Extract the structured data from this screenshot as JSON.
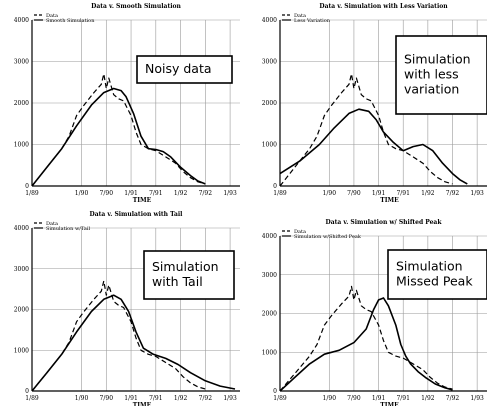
{
  "chart_data": [
    {
      "type": "line",
      "title": "Data v. Smooth Simulation",
      "xlabel": "TIME",
      "ylabel": "",
      "ylim": [
        0,
        4000
      ],
      "yticks": [
        "0",
        "1000",
        "2000",
        "3000",
        "4000"
      ],
      "xlim": [
        1989.0,
        1993.2
      ],
      "xticks": [
        "1/89",
        "1/90",
        "7/90",
        "1/91",
        "7/91",
        "1/92",
        "7/92",
        "1/93"
      ],
      "grid": true,
      "legend_position": "top-left",
      "callout": "Noisy data",
      "series": [
        {
          "name": "Data",
          "style": "dashed",
          "x": [
            1989.0,
            1989.4,
            1989.6,
            1989.75,
            1989.9,
            1990.05,
            1990.25,
            1990.4,
            1990.45,
            1990.5,
            1990.55,
            1990.65,
            1990.75,
            1990.85,
            1991.0,
            1991.1,
            1991.2,
            1991.35,
            1991.5,
            1991.7,
            1991.9,
            1992.05,
            1992.2,
            1992.35,
            1992.5
          ],
          "y": [
            0,
            600,
            900,
            1200,
            1700,
            1950,
            2250,
            2450,
            2700,
            2350,
            2600,
            2200,
            2100,
            2050,
            1700,
            1300,
            1000,
            900,
            850,
            700,
            550,
            350,
            200,
            100,
            50
          ]
        },
        {
          "name": "Smooth Simulation",
          "style": "solid",
          "x": [
            1989.0,
            1989.3,
            1989.6,
            1989.9,
            1990.2,
            1990.45,
            1990.65,
            1990.8,
            1990.9,
            1991.05,
            1991.2,
            1991.35,
            1991.5,
            1991.65,
            1991.8,
            1992.0,
            1992.2,
            1992.35,
            1992.5
          ],
          "y": [
            0,
            450,
            900,
            1450,
            1950,
            2250,
            2350,
            2300,
            2150,
            1750,
            1200,
            900,
            880,
            830,
            700,
            450,
            250,
            120,
            50
          ]
        }
      ]
    },
    {
      "type": "line",
      "title": "Data v. Simulation with Less Variation",
      "xlabel": "TIME",
      "ylabel": "",
      "ylim": [
        0,
        4000
      ],
      "yticks": [
        "0",
        "1000",
        "2000",
        "3000",
        "4000"
      ],
      "xlim": [
        1989.0,
        1993.2
      ],
      "xticks": [
        "1/89",
        "1/90",
        "7/90",
        "1/91",
        "7/91",
        "1/92",
        "7/92",
        "1/93"
      ],
      "grid": true,
      "legend_position": "top-left",
      "callout": "Simulation with less variation",
      "series": [
        {
          "name": "Data",
          "style": "dashed",
          "x": [
            1989.0,
            1989.4,
            1989.6,
            1989.75,
            1989.9,
            1990.05,
            1990.25,
            1990.4,
            1990.45,
            1990.5,
            1990.55,
            1990.65,
            1990.75,
            1990.85,
            1991.0,
            1991.1,
            1991.2,
            1991.35,
            1991.5,
            1991.7,
            1991.9,
            1992.05,
            1992.2,
            1992.35,
            1992.5
          ],
          "y": [
            0,
            600,
            900,
            1200,
            1700,
            1950,
            2250,
            2450,
            2700,
            2350,
            2600,
            2200,
            2100,
            2050,
            1700,
            1300,
            1000,
            900,
            850,
            700,
            550,
            350,
            200,
            100,
            50
          ]
        },
        {
          "name": "Less Variation",
          "style": "solid",
          "x": [
            1989.0,
            1989.4,
            1989.8,
            1990.1,
            1990.4,
            1990.6,
            1990.8,
            1990.95,
            1991.1,
            1991.3,
            1991.5,
            1991.7,
            1991.9,
            1992.1,
            1992.3,
            1992.5,
            1992.65,
            1992.8
          ],
          "y": [
            300,
            600,
            1000,
            1400,
            1750,
            1850,
            1800,
            1600,
            1300,
            1050,
            850,
            950,
            1000,
            850,
            550,
            300,
            150,
            50
          ]
        }
      ]
    },
    {
      "type": "line",
      "title": "Data v. Simulation with Tail",
      "xlabel": "TIME",
      "ylabel": "",
      "ylim": [
        0,
        4000
      ],
      "yticks": [
        "0",
        "1000",
        "2000",
        "3000",
        "4000"
      ],
      "xlim": [
        1989.0,
        1993.2
      ],
      "xticks": [
        "1/89",
        "1/90",
        "7/90",
        "1/91",
        "7/91",
        "1/92",
        "7/92",
        "1/93"
      ],
      "grid": true,
      "legend_position": "top-left",
      "callout": "Simulation with Tail",
      "series": [
        {
          "name": "Data",
          "style": "dashed",
          "x": [
            1989.0,
            1989.4,
            1989.6,
            1989.75,
            1989.9,
            1990.05,
            1990.25,
            1990.4,
            1990.45,
            1990.5,
            1990.55,
            1990.65,
            1990.75,
            1990.85,
            1991.0,
            1991.1,
            1991.2,
            1991.35,
            1991.5,
            1991.7,
            1991.9,
            1992.05,
            1992.2,
            1992.35,
            1992.5
          ],
          "y": [
            0,
            600,
            900,
            1200,
            1700,
            1950,
            2250,
            2450,
            2700,
            2350,
            2600,
            2200,
            2100,
            2050,
            1700,
            1300,
            1000,
            900,
            850,
            700,
            550,
            350,
            200,
            100,
            50
          ]
        },
        {
          "name": "Simulation w/Tail",
          "style": "solid",
          "x": [
            1989.0,
            1989.3,
            1989.6,
            1989.9,
            1990.2,
            1990.45,
            1990.65,
            1990.8,
            1990.95,
            1991.1,
            1991.25,
            1991.45,
            1991.7,
            1991.95,
            1992.2,
            1992.5,
            1992.8,
            1993.1
          ],
          "y": [
            0,
            450,
            900,
            1450,
            1950,
            2250,
            2350,
            2250,
            1950,
            1450,
            1050,
            900,
            800,
            650,
            450,
            250,
            120,
            50
          ]
        }
      ]
    },
    {
      "type": "line",
      "title": "Data v. Simulation w/ Shifted Peak",
      "xlabel": "TIME",
      "ylabel": "",
      "ylim": [
        0,
        4000
      ],
      "yticks": [
        "0",
        "1000",
        "2000",
        "3000",
        "4000"
      ],
      "xlim": [
        1989.0,
        1993.2
      ],
      "xticks": [
        "1/89",
        "1/90",
        "7/90",
        "1/91",
        "7/91",
        "1/92",
        "7/92",
        "1/93"
      ],
      "grid": true,
      "legend_position": "top-left",
      "callout": "Simulation Missed Peak",
      "series": [
        {
          "name": "Data",
          "style": "dashed",
          "x": [
            1989.0,
            1989.4,
            1989.6,
            1989.75,
            1989.9,
            1990.05,
            1990.25,
            1990.4,
            1990.45,
            1990.5,
            1990.55,
            1990.65,
            1990.75,
            1990.85,
            1991.0,
            1991.1,
            1991.2,
            1991.35,
            1991.5,
            1991.7,
            1991.9,
            1992.05,
            1992.2,
            1992.35,
            1992.5
          ],
          "y": [
            0,
            600,
            900,
            1200,
            1700,
            1950,
            2250,
            2450,
            2700,
            2350,
            2600,
            2200,
            2100,
            2050,
            1700,
            1300,
            1000,
            900,
            850,
            700,
            550,
            350,
            200,
            100,
            50
          ]
        },
        {
          "name": "Simulation w/Shifted Peak",
          "style": "solid",
          "x": [
            1989.0,
            1989.3,
            1989.6,
            1989.9,
            1990.2,
            1990.5,
            1990.75,
            1990.9,
            1991.0,
            1991.1,
            1991.2,
            1991.35,
            1991.45,
            1991.55,
            1991.65,
            1991.8,
            1991.95,
            1992.15,
            1992.35,
            1992.5
          ],
          "y": [
            0,
            350,
            700,
            950,
            1050,
            1250,
            1600,
            2100,
            2350,
            2400,
            2200,
            1700,
            1200,
            900,
            700,
            500,
            350,
            180,
            80,
            30
          ]
        }
      ]
    }
  ]
}
